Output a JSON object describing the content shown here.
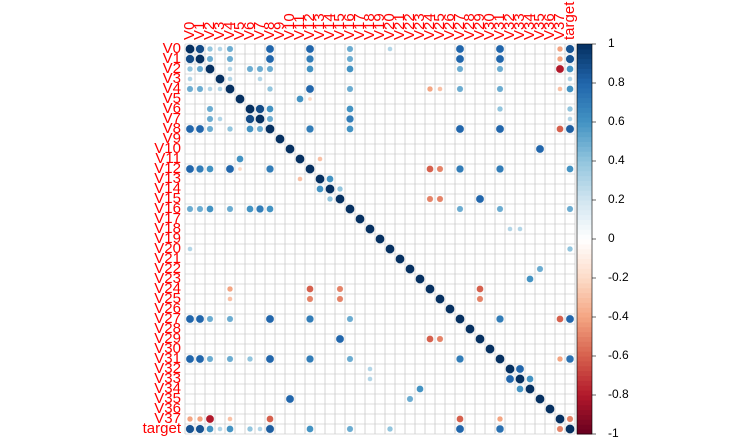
{
  "chart_data": {
    "type": "corrplot",
    "labels": [
      "V0",
      "V1",
      "V2",
      "V3",
      "V4",
      "V5",
      "V6",
      "V7",
      "V8",
      "V9",
      "V10",
      "V11",
      "V12",
      "V13",
      "V14",
      "V15",
      "V16",
      "V17",
      "V18",
      "V19",
      "V20",
      "V21",
      "V22",
      "V23",
      "V24",
      "V25",
      "V26",
      "V27",
      "V28",
      "V29",
      "V30",
      "V31",
      "V32",
      "V33",
      "V34",
      "V35",
      "V36",
      "V37",
      "target"
    ],
    "matrix": [
      [
        1,
        0.9,
        0.4,
        0.3,
        0.5,
        0,
        0,
        0,
        0.8,
        0,
        0,
        0,
        0.8,
        0,
        0,
        0,
        0.5,
        0,
        0,
        0,
        0.3,
        0,
        0,
        0,
        0,
        0,
        0,
        0.8,
        0,
        0,
        0,
        0.8,
        0,
        0,
        0,
        0,
        0,
        -0.4,
        0.87
      ],
      [
        0.9,
        1,
        0.5,
        0,
        0.5,
        0,
        0,
        0,
        0.8,
        0,
        0,
        0,
        0.7,
        0,
        0,
        0,
        0.5,
        0,
        0,
        0,
        0,
        0,
        0,
        0,
        0,
        0,
        0,
        0.8,
        0,
        0,
        0,
        0.8,
        0,
        0,
        0,
        0,
        0,
        -0.4,
        0.87
      ],
      [
        0.4,
        0.5,
        1,
        0,
        0.3,
        0,
        0.5,
        0.5,
        0.5,
        0,
        0,
        0,
        0.6,
        0,
        0,
        0,
        0.6,
        0,
        0,
        0,
        0,
        0,
        0,
        0,
        0,
        0,
        0,
        0.5,
        0,
        0,
        0,
        0.5,
        0,
        0,
        0,
        0,
        0,
        -0.8,
        0.6
      ],
      [
        0.3,
        0,
        0,
        1,
        0.3,
        0,
        0,
        0.3,
        0,
        0,
        0,
        0,
        0,
        0,
        0,
        0,
        0,
        0,
        0,
        0,
        0,
        0,
        0,
        0,
        0,
        0,
        0,
        0,
        0,
        0,
        0,
        0,
        0,
        0,
        0,
        0,
        0,
        0,
        0.3
      ],
      [
        0.5,
        0.5,
        0.3,
        0.3,
        1,
        0,
        0,
        0,
        0.4,
        0,
        0,
        0,
        0.8,
        0,
        0,
        0,
        0.5,
        0,
        0,
        0,
        0,
        0,
        0,
        0,
        -0.4,
        -0.3,
        0,
        0.5,
        0,
        0,
        0,
        0.5,
        0,
        0,
        0,
        0,
        0,
        -0.3,
        0.6
      ],
      [
        0,
        0,
        0,
        0,
        0,
        1,
        0,
        0,
        0,
        0,
        0,
        0.6,
        -0.2,
        0,
        0,
        0,
        0,
        0,
        0,
        0,
        0,
        0,
        0,
        0,
        0,
        0,
        0,
        0,
        0,
        0,
        0,
        0,
        0,
        0,
        0,
        0,
        0,
        0,
        0
      ],
      [
        0,
        0,
        0.5,
        0,
        0,
        0,
        1,
        0.9,
        0.6,
        0,
        0,
        0,
        0,
        0,
        0,
        0,
        0.6,
        0,
        0,
        0,
        0,
        0,
        0,
        0,
        0,
        0,
        0,
        0,
        0,
        0,
        0,
        0.4,
        0,
        0,
        0,
        0,
        0,
        0,
        0.4
      ],
      [
        0,
        0,
        0.5,
        0.3,
        0,
        0,
        0.9,
        1,
        0.5,
        0,
        0,
        0,
        0,
        0,
        0,
        0,
        0.7,
        0,
        0,
        0,
        0,
        0,
        0,
        0,
        0,
        0,
        0,
        0,
        0,
        0,
        0,
        0,
        0,
        0,
        0,
        0,
        0,
        0,
        0.3
      ],
      [
        0.8,
        0.8,
        0.5,
        0,
        0.4,
        0,
        0.6,
        0.5,
        1,
        0,
        0,
        0,
        0.7,
        0,
        0,
        0,
        0.6,
        0,
        0,
        0,
        0,
        0,
        0,
        0,
        0,
        0,
        0,
        0.8,
        0,
        0,
        0,
        0.8,
        0,
        0,
        0,
        0,
        0,
        -0.6,
        0.83
      ],
      [
        0,
        0,
        0,
        0,
        0,
        0,
        0,
        0,
        0,
        1,
        0,
        0,
        0,
        0,
        0,
        0,
        0,
        0,
        0,
        0,
        0,
        0,
        0,
        0,
        0,
        0,
        0,
        0,
        0,
        0,
        0,
        0,
        0,
        0,
        0,
        0,
        0,
        0,
        0
      ],
      [
        0,
        0,
        0,
        0,
        0,
        0,
        0,
        0,
        0,
        0,
        1,
        0,
        0,
        0,
        0,
        0,
        0,
        0,
        0,
        0,
        0,
        0,
        0,
        0,
        0,
        0,
        0,
        0,
        0,
        0,
        0,
        0,
        0,
        0,
        0,
        0.8,
        0,
        0,
        0
      ],
      [
        0,
        0,
        0,
        0,
        0,
        0.6,
        0,
        0,
        0,
        0,
        0,
        1,
        0,
        -0.3,
        0,
        0,
        0,
        0,
        0,
        0,
        0,
        0,
        0,
        0,
        0,
        0,
        0,
        0,
        0,
        0,
        0,
        0,
        0,
        0,
        0,
        0,
        0,
        0,
        0
      ],
      [
        0.8,
        0.7,
        0.6,
        0,
        0.8,
        -0.2,
        0,
        0,
        0.7,
        0,
        0,
        0,
        1,
        0,
        0,
        0,
        0,
        0,
        0,
        0,
        0,
        0,
        0,
        0,
        -0.6,
        -0.5,
        0,
        0.7,
        0,
        0,
        0,
        0.7,
        0,
        0,
        0,
        0,
        0,
        0,
        0.6
      ],
      [
        0,
        0,
        0,
        0,
        0,
        0,
        0,
        0,
        0,
        0,
        0,
        -0.3,
        0,
        1,
        0.6,
        0,
        0,
        0,
        0,
        0,
        0,
        0,
        0,
        0,
        0,
        0,
        0,
        0,
        0,
        0,
        0,
        0,
        0,
        0,
        0,
        0,
        0,
        0,
        0
      ],
      [
        0,
        0,
        0,
        0,
        0,
        0,
        0,
        0,
        0,
        0,
        0,
        0,
        0,
        0.6,
        1,
        0.4,
        0,
        0,
        0,
        0,
        0,
        0,
        0,
        0,
        0,
        0,
        0,
        0,
        0,
        0,
        0,
        0,
        0,
        0,
        0,
        0,
        0,
        0,
        0
      ],
      [
        0,
        0,
        0,
        0,
        0,
        0,
        0,
        0,
        0,
        0,
        0,
        0,
        0,
        0,
        0.4,
        1,
        0,
        0,
        0,
        0,
        0,
        0,
        0,
        0,
        -0.5,
        -0.5,
        0,
        0,
        0,
        0.8,
        0,
        0,
        0,
        0,
        0,
        0,
        0,
        0,
        0
      ],
      [
        0.5,
        0.5,
        0.6,
        0,
        0.5,
        0,
        0.6,
        0.7,
        0.6,
        0,
        0,
        0,
        0,
        0,
        0,
        0,
        1,
        0,
        0,
        0,
        0,
        0,
        0,
        0,
        0,
        0,
        0,
        0.5,
        0,
        0,
        0,
        0.5,
        0,
        0,
        0,
        0,
        0,
        0,
        0.5
      ],
      [
        0,
        0,
        0,
        0,
        0,
        0,
        0,
        0,
        0,
        0,
        0,
        0,
        0,
        0,
        0,
        0,
        0,
        1,
        0,
        0,
        0,
        0,
        0,
        0,
        0,
        0,
        0,
        0,
        0,
        0,
        0,
        0,
        0,
        0,
        0,
        0,
        0,
        0,
        0
      ],
      [
        0,
        0,
        0,
        0,
        0,
        0,
        0,
        0,
        0,
        0,
        0,
        0,
        0,
        0,
        0,
        0,
        0,
        0,
        1,
        0,
        0,
        0,
        0,
        0,
        0,
        0,
        0,
        0,
        0,
        0,
        0,
        0,
        0.3,
        0.3,
        0,
        0,
        0,
        0,
        0
      ],
      [
        0,
        0,
        0,
        0,
        0,
        0,
        0,
        0,
        0,
        0,
        0,
        0,
        0,
        0,
        0,
        0,
        0,
        0,
        0,
        1,
        0,
        0,
        0,
        0,
        0,
        0,
        0,
        0,
        0,
        0,
        0,
        0,
        0,
        0,
        0,
        0,
        0,
        0,
        0
      ],
      [
        0.3,
        0,
        0,
        0,
        0,
        0,
        0,
        0,
        0,
        0,
        0,
        0,
        0,
        0,
        0,
        0,
        0,
        0,
        0,
        0,
        1,
        0,
        0,
        0,
        0,
        0,
        0,
        0,
        0,
        0,
        0,
        0,
        0,
        0,
        0,
        0,
        0,
        0,
        0.4
      ],
      [
        0,
        0,
        0,
        0,
        0,
        0,
        0,
        0,
        0,
        0,
        0,
        0,
        0,
        0,
        0,
        0,
        0,
        0,
        0,
        0,
        0,
        1,
        0,
        0,
        0,
        0,
        0,
        0,
        0,
        0,
        0,
        0,
        0,
        0,
        0,
        0,
        0,
        0,
        0
      ],
      [
        0,
        0,
        0,
        0,
        0,
        0,
        0,
        0,
        0,
        0,
        0,
        0,
        0,
        0,
        0,
        0,
        0,
        0,
        0,
        0,
        0,
        0,
        1,
        0,
        0,
        0,
        0,
        0,
        0,
        0,
        0,
        0,
        0,
        0,
        0,
        0.5,
        0,
        0,
        0
      ],
      [
        0,
        0,
        0,
        0,
        0,
        0,
        0,
        0,
        0,
        0,
        0,
        0,
        0,
        0,
        0,
        0,
        0,
        0,
        0,
        0,
        0,
        0,
        0,
        1,
        0,
        0,
        0,
        0,
        0,
        0,
        0,
        0,
        0,
        0,
        0.6,
        0,
        0,
        0,
        0
      ],
      [
        0,
        0,
        0,
        0,
        -0.4,
        0,
        0,
        0,
        0,
        0,
        0,
        0,
        -0.6,
        0,
        0,
        -0.5,
        0,
        0,
        0,
        0,
        0,
        0,
        0,
        0,
        1,
        0,
        0,
        0,
        0,
        -0.6,
        0,
        0,
        0,
        0,
        0,
        0,
        0,
        0,
        0
      ],
      [
        0,
        0,
        0,
        0,
        -0.3,
        0,
        0,
        0,
        0,
        0,
        0,
        0,
        -0.5,
        0,
        0,
        -0.5,
        0,
        0,
        0,
        0,
        0,
        0,
        0,
        0,
        0,
        1,
        0,
        0,
        0,
        -0.5,
        0,
        0,
        0,
        0,
        0,
        0,
        0,
        0,
        0
      ],
      [
        0,
        0,
        0,
        0,
        0,
        0,
        0,
        0,
        0,
        0,
        0,
        0,
        0,
        0,
        0,
        0,
        0,
        0,
        0,
        0,
        0,
        0,
        0,
        0,
        0,
        0,
        1,
        0,
        0,
        0,
        0,
        0,
        0,
        0,
        0,
        0,
        0,
        0,
        0
      ],
      [
        0.8,
        0.8,
        0.5,
        0,
        0.5,
        0,
        0,
        0,
        0.8,
        0,
        0,
        0,
        0.7,
        0,
        0,
        0,
        0.5,
        0,
        0,
        0,
        0,
        0,
        0,
        0,
        0,
        0,
        0,
        1,
        0,
        0,
        0,
        0.7,
        0,
        0,
        0,
        0,
        0,
        -0.6,
        0.8
      ],
      [
        0,
        0,
        0,
        0,
        0,
        0,
        0,
        0,
        0,
        0,
        0,
        0,
        0,
        0,
        0,
        0,
        0,
        0,
        0,
        0,
        0,
        0,
        0,
        0,
        0,
        0,
        0,
        0,
        1,
        0,
        0,
        0,
        0,
        0,
        0,
        0,
        0,
        0,
        0
      ],
      [
        0,
        0,
        0,
        0,
        0,
        0,
        0,
        0,
        0,
        0,
        0,
        0,
        0,
        0,
        0,
        0.8,
        0,
        0,
        0,
        0,
        0,
        0,
        0,
        0,
        -0.6,
        -0.5,
        0,
        0,
        0,
        1,
        0,
        0,
        0,
        0,
        0,
        0,
        0,
        0,
        0
      ],
      [
        0,
        0,
        0,
        0,
        0,
        0,
        0,
        0,
        0,
        0,
        0,
        0,
        0,
        0,
        0,
        0,
        0,
        0,
        0,
        0,
        0,
        0,
        0,
        0,
        0,
        0,
        0,
        0,
        0,
        0,
        1,
        0,
        0,
        0,
        0,
        0,
        0,
        0,
        0
      ],
      [
        0.8,
        0.8,
        0.5,
        0,
        0.5,
        0,
        0.4,
        0,
        0.8,
        0,
        0,
        0,
        0.7,
        0,
        0,
        0,
        0.5,
        0,
        0,
        0,
        0,
        0,
        0,
        0,
        0,
        0,
        0,
        0.7,
        0,
        0,
        0,
        1,
        0,
        0,
        0,
        0,
        0,
        -0.4,
        0.75
      ],
      [
        0,
        0,
        0,
        0,
        0,
        0,
        0,
        0,
        0,
        0,
        0,
        0,
        0,
        0,
        0,
        0,
        0,
        0,
        0.3,
        0,
        0,
        0,
        0,
        0,
        0,
        0,
        0,
        0,
        0,
        0,
        0,
        0,
        1,
        0.8,
        0,
        0,
        0,
        0,
        0
      ],
      [
        0,
        0,
        0,
        0,
        0,
        0,
        0,
        0,
        0,
        0,
        0,
        0,
        0,
        0,
        0,
        0,
        0,
        0,
        0.3,
        0,
        0,
        0,
        0,
        0,
        0,
        0,
        0,
        0,
        0,
        0,
        0,
        0,
        0.8,
        1,
        0.6,
        0,
        0,
        0,
        0
      ],
      [
        0,
        0,
        0,
        0,
        0,
        0,
        0,
        0,
        0,
        0,
        0,
        0,
        0,
        0,
        0,
        0,
        0,
        0,
        0,
        0,
        0,
        0,
        0,
        0.6,
        0,
        0,
        0,
        0,
        0,
        0,
        0,
        0,
        0,
        0.6,
        1,
        0,
        0,
        0,
        0
      ],
      [
        0,
        0,
        0,
        0,
        0,
        0,
        0,
        0,
        0,
        0,
        0.8,
        0,
        0,
        0,
        0,
        0,
        0,
        0,
        0,
        0,
        0,
        0,
        0.5,
        0,
        0,
        0,
        0,
        0,
        0,
        0,
        0,
        0,
        0,
        0,
        0,
        1,
        0,
        0,
        0
      ],
      [
        0,
        0,
        0,
        0,
        0,
        0,
        0,
        0,
        0,
        0,
        0,
        0,
        0,
        0,
        0,
        0,
        0,
        0,
        0,
        0,
        0,
        0,
        0,
        0,
        0,
        0,
        0,
        0,
        0,
        0,
        0,
        0,
        0,
        0,
        0,
        0,
        1,
        0,
        0
      ],
      [
        -0.4,
        -0.4,
        -0.8,
        0,
        -0.3,
        0,
        0,
        0,
        -0.6,
        0,
        0,
        0,
        0,
        0,
        0,
        0,
        0,
        0,
        0,
        0,
        0,
        0,
        0,
        0,
        0,
        0,
        0,
        -0.6,
        0,
        0,
        0,
        -0.4,
        0,
        0,
        0,
        0,
        0,
        1,
        -0.5
      ],
      [
        0.87,
        0.87,
        0.6,
        0.3,
        0.6,
        0,
        0.4,
        0.3,
        0.83,
        0,
        0,
        0,
        0.6,
        0,
        0,
        0,
        0.5,
        0,
        0,
        0,
        0.4,
        0,
        0,
        0,
        0,
        0,
        0,
        0.8,
        0,
        0,
        0,
        0.75,
        0,
        0,
        0,
        0,
        0,
        -0.5,
        1
      ]
    ],
    "colorbar_lim": [
      -1,
      1
    ],
    "colorbar_ticks": [
      1,
      0.8,
      0.6,
      0.4,
      0.2,
      0,
      -0.2,
      -0.4,
      -0.6,
      -0.8,
      -1
    ],
    "colors": [
      "#67001F",
      "#B2182B",
      "#D6604D",
      "#F4A582",
      "#FDDBC7",
      "#FFFFFF",
      "#D1E5F0",
      "#92C5DE",
      "#4393C3",
      "#2166AC",
      "#053061"
    ],
    "label_color": "#FF0000",
    "grid": true
  }
}
